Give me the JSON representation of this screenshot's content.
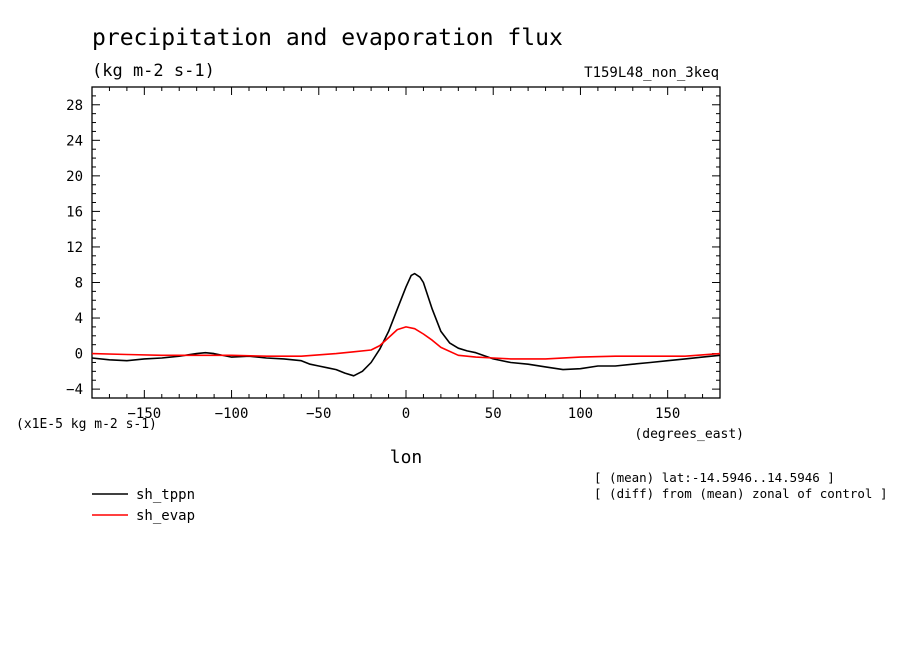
{
  "chart_data": {
    "type": "line",
    "title": "precipitation and evaporation flux",
    "units": "(kg m-2 s-1)",
    "experiment": "T159L48_non_3keq",
    "scale_label": "(x1E-5 kg m-2 s-1)",
    "xlabel": "lon",
    "xunits": "(degrees_east)",
    "xlim": [
      -180,
      180
    ],
    "ylim": [
      -5,
      30
    ],
    "xticks": [
      -150,
      -100,
      -50,
      0,
      50,
      100,
      150
    ],
    "xtick_labels": [
      "−150",
      "−100",
      "−50",
      "0",
      "50",
      "100",
      "150"
    ],
    "yticks": [
      -4,
      0,
      4,
      8,
      12,
      16,
      20,
      24,
      28
    ],
    "ytick_labels": [
      "−4",
      "0",
      "4",
      "8",
      "12",
      "16",
      "20",
      "24",
      "28"
    ],
    "notes": [
      "[ (mean) lat:-14.5946..14.5946 ]",
      "[ (diff) from (mean) zonal of control ]"
    ],
    "series": [
      {
        "name": "sh_tppn",
        "color": "#000000",
        "x": [
          -180,
          -170,
          -160,
          -150,
          -140,
          -130,
          -120,
          -115,
          -110,
          -100,
          -90,
          -80,
          -70,
          -60,
          -55,
          -50,
          -45,
          -40,
          -35,
          -30,
          -25,
          -20,
          -15,
          -10,
          -5,
          0,
          3,
          5,
          8,
          10,
          15,
          20,
          25,
          30,
          35,
          40,
          50,
          60,
          70,
          80,
          90,
          100,
          110,
          120,
          130,
          140,
          150,
          160,
          170,
          180
        ],
        "y": [
          -0.5,
          -0.7,
          -0.8,
          -0.6,
          -0.5,
          -0.3,
          0.0,
          0.1,
          0.0,
          -0.4,
          -0.3,
          -0.5,
          -0.6,
          -0.8,
          -1.2,
          -1.4,
          -1.6,
          -1.8,
          -2.2,
          -2.5,
          -2.0,
          -1.0,
          0.5,
          2.5,
          5.0,
          7.5,
          8.8,
          9.0,
          8.6,
          8.0,
          5.0,
          2.5,
          1.2,
          0.6,
          0.3,
          0.1,
          -0.6,
          -1.0,
          -1.2,
          -1.5,
          -1.8,
          -1.7,
          -1.4,
          -1.4,
          -1.2,
          -1.0,
          -0.8,
          -0.6,
          -0.4,
          -0.2
        ]
      },
      {
        "name": "sh_evap",
        "color": "#ff0000",
        "x": [
          -180,
          -160,
          -140,
          -120,
          -100,
          -80,
          -60,
          -40,
          -30,
          -20,
          -15,
          -10,
          -5,
          0,
          5,
          10,
          15,
          20,
          30,
          40,
          50,
          60,
          70,
          80,
          100,
          120,
          140,
          160,
          180
        ],
        "y": [
          0.0,
          -0.1,
          -0.2,
          -0.2,
          -0.2,
          -0.3,
          -0.3,
          0.0,
          0.2,
          0.4,
          0.9,
          1.8,
          2.7,
          3.0,
          2.8,
          2.2,
          1.5,
          0.7,
          -0.2,
          -0.4,
          -0.5,
          -0.6,
          -0.6,
          -0.6,
          -0.4,
          -0.3,
          -0.3,
          -0.3,
          0.0
        ]
      }
    ],
    "legend": "bottom-left"
  }
}
